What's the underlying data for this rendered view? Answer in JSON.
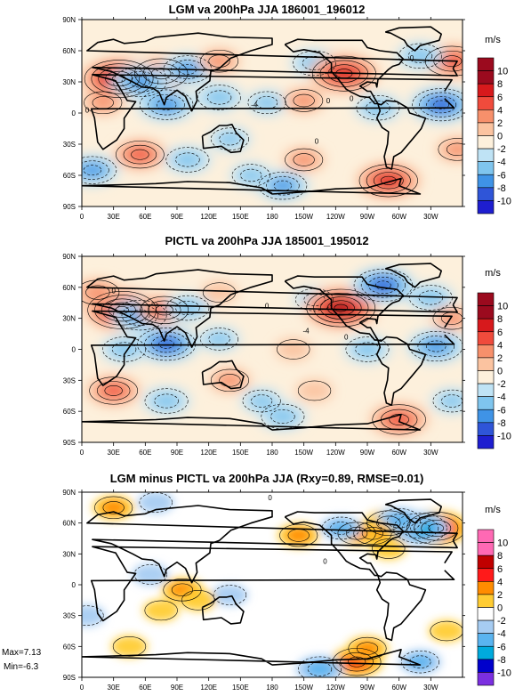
{
  "chart_data": [
    {
      "type": "heatmap",
      "title": "LGM va 200hPa JJA 186001_196012",
      "xlabel": "",
      "ylabel": "",
      "x_ticks": [
        "0",
        "30E",
        "60E",
        "90E",
        "120E",
        "150E",
        "180",
        "150W",
        "120W",
        "90W",
        "60W",
        "30W"
      ],
      "y_ticks": [
        "90N",
        "60N",
        "30N",
        "0",
        "30S",
        "60S",
        "90S"
      ],
      "units": "m/s",
      "color_levels": [
        "10",
        "8",
        "6",
        "4",
        "2",
        "0",
        "-2",
        "-4",
        "-6",
        "-8",
        "-10"
      ],
      "palette": [
        "#9b0a1e",
        "#d7191c",
        "#f04b3c",
        "#f7906b",
        "#fbc3a0",
        "#fdf0dc",
        "#bfe3f5",
        "#7fc5ee",
        "#3f93e6",
        "#2f55d8",
        "#1e1ed0"
      ],
      "contour_labels": [
        {
          "text": "0",
          "lon": 5,
          "lat": 3
        },
        {
          "text": "-4",
          "lon": 163,
          "lat": 8
        },
        {
          "text": "0",
          "lon": -127,
          "lat": 12
        },
        {
          "text": "0",
          "lon": -105,
          "lat": 14
        },
        {
          "text": "0",
          "lon": -138,
          "lat": -27
        },
        {
          "text": "0",
          "lon": -48,
          "lat": 53
        }
      ],
      "anomalies": [
        {
          "lon": 35,
          "lat": 33,
          "value": 9
        },
        {
          "lon": 75,
          "lat": 38,
          "value": 6
        },
        {
          "lon": 55,
          "lat": 30,
          "value": -6
        },
        {
          "lon": 100,
          "lat": 42,
          "value": -5
        },
        {
          "lon": 130,
          "lat": 50,
          "value": 3
        },
        {
          "lon": -140,
          "lat": 48,
          "value": -4
        },
        {
          "lon": -112,
          "lat": 38,
          "value": 8
        },
        {
          "lon": -10,
          "lat": 50,
          "value": 6
        },
        {
          "lon": -40,
          "lat": 55,
          "value": -4
        },
        {
          "lon": 20,
          "lat": 10,
          "value": 3
        },
        {
          "lon": 80,
          "lat": 8,
          "value": -6
        },
        {
          "lon": 130,
          "lat": 15,
          "value": -4
        },
        {
          "lon": 175,
          "lat": 10,
          "value": -3
        },
        {
          "lon": -150,
          "lat": 12,
          "value": 3
        },
        {
          "lon": -80,
          "lat": 5,
          "value": -4
        },
        {
          "lon": -20,
          "lat": 8,
          "value": -7
        },
        {
          "lon": 55,
          "lat": -40,
          "value": 5
        },
        {
          "lon": 10,
          "lat": -55,
          "value": -5
        },
        {
          "lon": 100,
          "lat": -45,
          "value": -4
        },
        {
          "lon": 140,
          "lat": -25,
          "value": -3
        },
        {
          "lon": -150,
          "lat": -45,
          "value": 3
        },
        {
          "lon": -70,
          "lat": -65,
          "value": 7
        },
        {
          "lon": -170,
          "lat": -70,
          "value": -5
        },
        {
          "lon": -5,
          "lat": -35,
          "value": 3
        },
        {
          "lon": 160,
          "lat": -60,
          "value": -3
        }
      ]
    },
    {
      "type": "heatmap",
      "title": "PICTL va 200hPa JJA 185001_195012",
      "xlabel": "",
      "ylabel": "",
      "x_ticks": [
        "0",
        "30E",
        "60E",
        "90E",
        "120E",
        "150E",
        "180",
        "150W",
        "120W",
        "90W",
        "60W",
        "30W"
      ],
      "y_ticks": [
        "90N",
        "60N",
        "30N",
        "0",
        "30S",
        "60S",
        "90S"
      ],
      "units": "m/s",
      "color_levels": [
        "10",
        "8",
        "6",
        "4",
        "2",
        "0",
        "-2",
        "-4",
        "-6",
        "-8",
        "-10"
      ],
      "palette": [
        "#9b0a1e",
        "#d7191c",
        "#f04b3c",
        "#f7906b",
        "#fbc3a0",
        "#fdf0dc",
        "#bfe3f5",
        "#7fc5ee",
        "#3f93e6",
        "#2f55d8",
        "#1e1ed0"
      ],
      "contour_labels": [
        {
          "text": "0",
          "lon": 30,
          "lat": 57
        },
        {
          "text": "0",
          "lon": 175,
          "lat": 42
        },
        {
          "text": "-4",
          "lon": -148,
          "lat": 18
        },
        {
          "text": "0",
          "lon": -110,
          "lat": 12
        }
      ],
      "anomalies": [
        {
          "lon": 38,
          "lat": 38,
          "value": 9
        },
        {
          "lon": 15,
          "lat": 55,
          "value": 4
        },
        {
          "lon": 55,
          "lat": 33,
          "value": -6
        },
        {
          "lon": 78,
          "lat": 38,
          "value": 5
        },
        {
          "lon": 100,
          "lat": 40,
          "value": -4
        },
        {
          "lon": 130,
          "lat": 55,
          "value": 2
        },
        {
          "lon": -140,
          "lat": 48,
          "value": -3
        },
        {
          "lon": -115,
          "lat": 40,
          "value": 9
        },
        {
          "lon": -75,
          "lat": 62,
          "value": -7
        },
        {
          "lon": -30,
          "lat": 50,
          "value": -4
        },
        {
          "lon": -10,
          "lat": 30,
          "value": 3
        },
        {
          "lon": 80,
          "lat": 5,
          "value": -7
        },
        {
          "lon": 40,
          "lat": 0,
          "value": -4
        },
        {
          "lon": 130,
          "lat": 10,
          "value": -3
        },
        {
          "lon": -160,
          "lat": 0,
          "value": 2
        },
        {
          "lon": -90,
          "lat": 0,
          "value": -4
        },
        {
          "lon": -25,
          "lat": 3,
          "value": -6
        },
        {
          "lon": 30,
          "lat": -40,
          "value": 5
        },
        {
          "lon": 140,
          "lat": -30,
          "value": 3
        },
        {
          "lon": 80,
          "lat": -50,
          "value": -4
        },
        {
          "lon": -140,
          "lat": -40,
          "value": 2
        },
        {
          "lon": -60,
          "lat": -68,
          "value": 6
        },
        {
          "lon": -170,
          "lat": -65,
          "value": -4
        },
        {
          "lon": -10,
          "lat": -50,
          "value": -3
        },
        {
          "lon": 170,
          "lat": -50,
          "value": -3
        }
      ]
    },
    {
      "type": "heatmap",
      "title": "LGM minus PICTL va 200hPa JJA (Rxy=0.89, RMSE=0.01)",
      "xlabel": "",
      "ylabel": "",
      "x_ticks": [
        "0",
        "30E",
        "60E",
        "90E",
        "120E",
        "150E",
        "180",
        "150W",
        "120W",
        "90W",
        "60W",
        "30W"
      ],
      "y_ticks": [
        "90N",
        "60N",
        "30N",
        "0",
        "30S",
        "60S",
        "90S"
      ],
      "units": "m/s",
      "color_levels": [
        "10",
        "8",
        "6",
        "4",
        "2",
        "0",
        "-2",
        "-4",
        "-6",
        "-8",
        "-10"
      ],
      "palette": [
        "#ff69b4",
        "#c00000",
        "#ff1a1a",
        "#ff8c00",
        "#ffcc33",
        "#ffffff",
        "#a6ccf2",
        "#5ab4f0",
        "#00aadd",
        "#0000cc",
        "#7b2fe0"
      ],
      "contour_labels": [
        {
          "text": "0",
          "lon": 178,
          "lat": 85
        },
        {
          "text": "0",
          "lon": -130,
          "lat": 23
        }
      ],
      "anomalies": [
        {
          "lon": -25,
          "lat": 55,
          "value": 7
        },
        {
          "lon": -40,
          "lat": 55,
          "value": -6
        },
        {
          "lon": -70,
          "lat": 60,
          "value": 4
        },
        {
          "lon": -60,
          "lat": 62,
          "value": -4
        },
        {
          "lon": -85,
          "lat": 50,
          "value": 3
        },
        {
          "lon": -70,
          "lat": 35,
          "value": 2
        },
        {
          "lon": -100,
          "lat": 50,
          "value": 3
        },
        {
          "lon": -115,
          "lat": 55,
          "value": -3
        },
        {
          "lon": -155,
          "lat": 48,
          "value": 3
        },
        {
          "lon": 95,
          "lat": -5,
          "value": 3
        },
        {
          "lon": 65,
          "lat": 10,
          "value": -2
        },
        {
          "lon": 75,
          "lat": -25,
          "value": 2
        },
        {
          "lon": 140,
          "lat": -10,
          "value": -2
        },
        {
          "lon": 110,
          "lat": -15,
          "value": 2
        },
        {
          "lon": -100,
          "lat": -75,
          "value": 5
        },
        {
          "lon": -90,
          "lat": -62,
          "value": 3
        },
        {
          "lon": -135,
          "lat": -82,
          "value": -4
        },
        {
          "lon": -40,
          "lat": -75,
          "value": -3
        },
        {
          "lon": 45,
          "lat": -60,
          "value": 2
        },
        {
          "lon": 5,
          "lat": -30,
          "value": -2
        },
        {
          "lon": 30,
          "lat": 75,
          "value": 3
        },
        {
          "lon": 70,
          "lat": 80,
          "value": -2
        },
        {
          "lon": -15,
          "lat": -45,
          "value": 2
        }
      ],
      "stats": {
        "max": "Max=7.13",
        "min": "Min=-6.3"
      }
    }
  ]
}
